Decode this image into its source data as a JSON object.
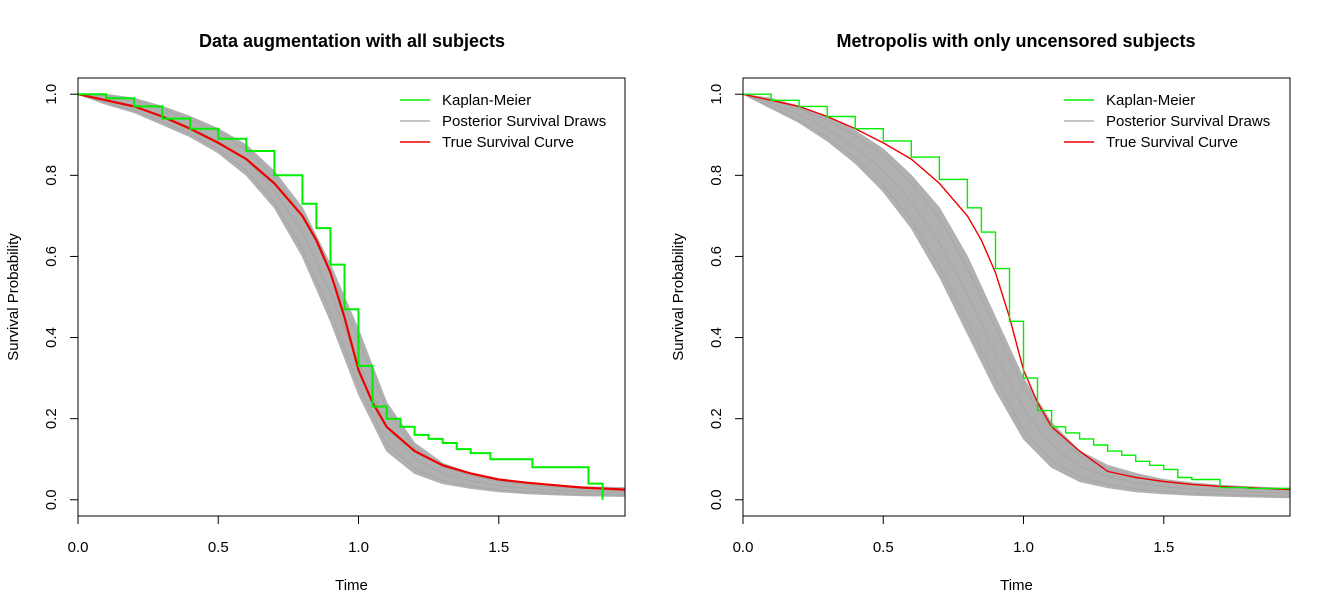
{
  "chart_data": [
    {
      "type": "line",
      "title": "Data augmentation with all subjects",
      "xlabel": "Time",
      "ylabel": "Survival Probability",
      "xlim": [
        0,
        1.95
      ],
      "ylim": [
        -0.04,
        1.04
      ],
      "xticks": [
        0.0,
        0.5,
        1.0,
        1.5
      ],
      "xtick_labels": [
        "0.0",
        "0.5",
        "1.0",
        "1.5"
      ],
      "yticks": [
        0.0,
        0.2,
        0.4,
        0.6,
        0.8,
        1.0
      ],
      "ytick_labels": [
        "0.0",
        "0.2",
        "0.4",
        "0.6",
        "0.8",
        "1.0"
      ],
      "grid": false,
      "legend_position": "top-right",
      "legend": [
        {
          "label": "Kaplan-Meier",
          "color": "#00ee00"
        },
        {
          "label": "Posterior Survival Draws",
          "color": "#b0b0b0"
        },
        {
          "label": "True Survival Curve",
          "color": "#ee0000"
        }
      ],
      "posterior_band": {
        "color": "#b0b0b0",
        "x": [
          0,
          0.1,
          0.2,
          0.3,
          0.4,
          0.5,
          0.6,
          0.7,
          0.8,
          0.9,
          1.0,
          1.1,
          1.2,
          1.3,
          1.4,
          1.5,
          1.6,
          1.7,
          1.8,
          1.95
        ],
        "upper": [
          1.0,
          1.0,
          0.99,
          0.97,
          0.945,
          0.915,
          0.875,
          0.81,
          0.72,
          0.58,
          0.42,
          0.24,
          0.14,
          0.09,
          0.065,
          0.05,
          0.04,
          0.035,
          0.032,
          0.03
        ],
        "lower": [
          1.0,
          0.975,
          0.955,
          0.925,
          0.895,
          0.855,
          0.8,
          0.72,
          0.6,
          0.44,
          0.26,
          0.12,
          0.065,
          0.04,
          0.028,
          0.02,
          0.015,
          0.012,
          0.01,
          0.008
        ]
      },
      "true_curve": {
        "color": "#ee0000",
        "x": [
          0,
          0.1,
          0.2,
          0.3,
          0.4,
          0.5,
          0.6,
          0.7,
          0.8,
          0.85,
          0.9,
          0.95,
          1.0,
          1.05,
          1.1,
          1.2,
          1.3,
          1.4,
          1.5,
          1.6,
          1.7,
          1.8,
          1.95
        ],
        "y": [
          1.0,
          0.985,
          0.97,
          0.945,
          0.915,
          0.88,
          0.84,
          0.78,
          0.7,
          0.64,
          0.56,
          0.45,
          0.32,
          0.24,
          0.18,
          0.12,
          0.085,
          0.065,
          0.05,
          0.042,
          0.036,
          0.03,
          0.025
        ]
      },
      "kaplan_meier": {
        "color": "#00ee00",
        "x": [
          0,
          0.1,
          0.2,
          0.3,
          0.4,
          0.5,
          0.6,
          0.7,
          0.8,
          0.85,
          0.9,
          0.95,
          1.0,
          1.05,
          1.1,
          1.15,
          1.2,
          1.25,
          1.3,
          1.35,
          1.4,
          1.47,
          1.62,
          1.82,
          1.87
        ],
        "y": [
          1.0,
          0.99,
          0.97,
          0.94,
          0.915,
          0.89,
          0.86,
          0.8,
          0.73,
          0.67,
          0.58,
          0.47,
          0.33,
          0.23,
          0.2,
          0.18,
          0.16,
          0.15,
          0.14,
          0.125,
          0.115,
          0.1,
          0.08,
          0.04,
          0.0
        ]
      }
    },
    {
      "type": "line",
      "title": "Metropolis with only uncensored subjects",
      "xlabel": "Time",
      "ylabel": "Survival Probability",
      "xlim": [
        0,
        1.95
      ],
      "ylim": [
        -0.04,
        1.04
      ],
      "xticks": [
        0.0,
        0.5,
        1.0,
        1.5
      ],
      "xtick_labels": [
        "0.0",
        "0.5",
        "1.0",
        "1.5"
      ],
      "yticks": [
        0.0,
        0.2,
        0.4,
        0.6,
        0.8,
        1.0
      ],
      "ytick_labels": [
        "0.0",
        "0.2",
        "0.4",
        "0.6",
        "0.8",
        "1.0"
      ],
      "grid": false,
      "legend_position": "top-right",
      "legend": [
        {
          "label": "Kaplan-Meier",
          "color": "#00ee00"
        },
        {
          "label": "Posterior Survival Draws",
          "color": "#b0b0b0"
        },
        {
          "label": "True Survival Curve",
          "color": "#ee0000"
        }
      ],
      "posterior_band": {
        "color": "#b0b0b0",
        "x": [
          0,
          0.1,
          0.2,
          0.3,
          0.4,
          0.5,
          0.6,
          0.7,
          0.8,
          0.9,
          1.0,
          1.1,
          1.2,
          1.3,
          1.4,
          1.5,
          1.6,
          1.7,
          1.8,
          1.95
        ],
        "upper": [
          1.0,
          0.99,
          0.97,
          0.945,
          0.91,
          0.865,
          0.8,
          0.72,
          0.6,
          0.45,
          0.3,
          0.19,
          0.12,
          0.085,
          0.065,
          0.05,
          0.042,
          0.036,
          0.032,
          0.028
        ],
        "lower": [
          1.0,
          0.965,
          0.93,
          0.885,
          0.83,
          0.76,
          0.67,
          0.55,
          0.41,
          0.27,
          0.15,
          0.08,
          0.045,
          0.03,
          0.02,
          0.015,
          0.011,
          0.009,
          0.007,
          0.005
        ]
      },
      "true_curve": {
        "color": "#ee0000",
        "x": [
          0,
          0.1,
          0.2,
          0.3,
          0.4,
          0.5,
          0.6,
          0.7,
          0.8,
          0.85,
          0.9,
          0.95,
          1.0,
          1.05,
          1.1,
          1.2,
          1.3,
          1.4,
          1.5,
          1.6,
          1.7,
          1.8,
          1.95
        ],
        "y": [
          1.0,
          0.985,
          0.97,
          0.945,
          0.915,
          0.88,
          0.84,
          0.78,
          0.7,
          0.64,
          0.56,
          0.45,
          0.32,
          0.24,
          0.18,
          0.12,
          0.07,
          0.055,
          0.045,
          0.038,
          0.033,
          0.03,
          0.025
        ]
      },
      "kaplan_meier": {
        "color": "#00ee00",
        "x": [
          0,
          0.1,
          0.2,
          0.3,
          0.4,
          0.5,
          0.6,
          0.7,
          0.8,
          0.85,
          0.9,
          0.95,
          1.0,
          1.05,
          1.1,
          1.15,
          1.2,
          1.25,
          1.3,
          1.35,
          1.4,
          1.45,
          1.5,
          1.55,
          1.6,
          1.7,
          1.8,
          1.95
        ],
        "y": [
          1.0,
          0.985,
          0.97,
          0.945,
          0.915,
          0.885,
          0.845,
          0.79,
          0.72,
          0.66,
          0.57,
          0.44,
          0.3,
          0.22,
          0.18,
          0.165,
          0.15,
          0.135,
          0.12,
          0.11,
          0.095,
          0.085,
          0.075,
          0.055,
          0.05,
          0.03,
          0.028,
          0.027
        ]
      }
    }
  ]
}
